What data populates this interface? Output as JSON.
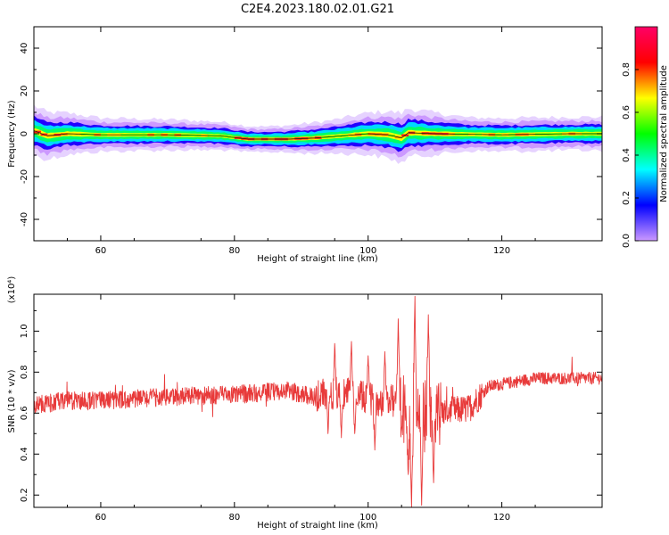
{
  "title": "C2E4.2023.180.02.01.G21",
  "chart_data": [
    {
      "type": "heatmap",
      "xlabel": "Height of straight line (km)",
      "ylabel": "Frequency (Hz)",
      "xlim": [
        50,
        135
      ],
      "ylim": [
        -50,
        50
      ],
      "xticks": [
        60,
        80,
        100,
        120
      ],
      "yticks": [
        40,
        20,
        0,
        -20,
        -40
      ],
      "colorbar": {
        "label": "Normalized spectral amplitude",
        "range": [
          0,
          1
        ],
        "ticks": [
          "0.0",
          "0.2",
          "0.4",
          "0.6",
          "0.8"
        ],
        "colormap": [
          "#cc99ff",
          "#0000ff",
          "#00ffff",
          "#00ff00",
          "#ffff00",
          "#ff0000",
          "#ff0066"
        ]
      },
      "centerline_hz": [
        [
          50,
          1.5
        ],
        [
          52,
          -1.0
        ],
        [
          55,
          0.0
        ],
        [
          60,
          -0.5
        ],
        [
          70,
          -0.5
        ],
        [
          78,
          -1.0
        ],
        [
          82,
          -2.5
        ],
        [
          88,
          -2.5
        ],
        [
          92,
          -2.0
        ],
        [
          96,
          -1.0
        ],
        [
          100,
          0.0
        ],
        [
          103,
          -0.5
        ],
        [
          105,
          -2.0
        ],
        [
          106,
          0.5
        ],
        [
          110,
          0.0
        ],
        [
          120,
          -0.5
        ],
        [
          130,
          0.0
        ],
        [
          135,
          0.0
        ]
      ],
      "bandwidth_hz": [
        [
          50,
          6
        ],
        [
          60,
          4
        ],
        [
          75,
          3.5
        ],
        [
          85,
          3
        ],
        [
          95,
          4
        ],
        [
          105,
          6
        ],
        [
          115,
          4
        ],
        [
          135,
          4
        ]
      ]
    },
    {
      "type": "line",
      "xlabel": "Height of straight line (km)",
      "ylabel": "SNR (10 * v/v)",
      "scale_label": "(x10⁴)",
      "xlim": [
        50,
        135
      ],
      "ylim": [
        0.14,
        1.18
      ],
      "xticks": [
        60,
        80,
        100,
        120
      ],
      "yticks": [
        "0.2",
        "0.4",
        "0.6",
        "0.8",
        "1.0"
      ],
      "color": "#e83a3a",
      "baseline": [
        [
          50,
          0.64
        ],
        [
          55,
          0.66
        ],
        [
          60,
          0.66
        ],
        [
          70,
          0.68
        ],
        [
          80,
          0.69
        ],
        [
          88,
          0.71
        ],
        [
          92,
          0.68
        ],
        [
          96,
          0.7
        ],
        [
          100,
          0.67
        ],
        [
          104,
          0.66
        ],
        [
          106,
          0.6
        ],
        [
          108,
          0.58
        ],
        [
          112,
          0.61
        ],
        [
          115,
          0.62
        ],
        [
          118,
          0.73
        ],
        [
          125,
          0.77
        ],
        [
          135,
          0.77
        ]
      ],
      "peaks": [
        [
          107.0,
          1.17
        ],
        [
          109.0,
          1.08
        ],
        [
          104.5,
          1.06
        ],
        [
          95.0,
          0.94
        ],
        [
          106.5,
          0.14
        ],
        [
          108.0,
          0.15
        ],
        [
          109.8,
          0.26
        ],
        [
          106.0,
          0.3
        ],
        [
          101.0,
          0.42
        ],
        [
          98.0,
          0.5
        ],
        [
          94.0,
          0.5
        ],
        [
          102.5,
          0.9
        ],
        [
          97.5,
          0.95
        ],
        [
          96.0,
          0.48
        ],
        [
          100.0,
          0.88
        ]
      ]
    }
  ]
}
